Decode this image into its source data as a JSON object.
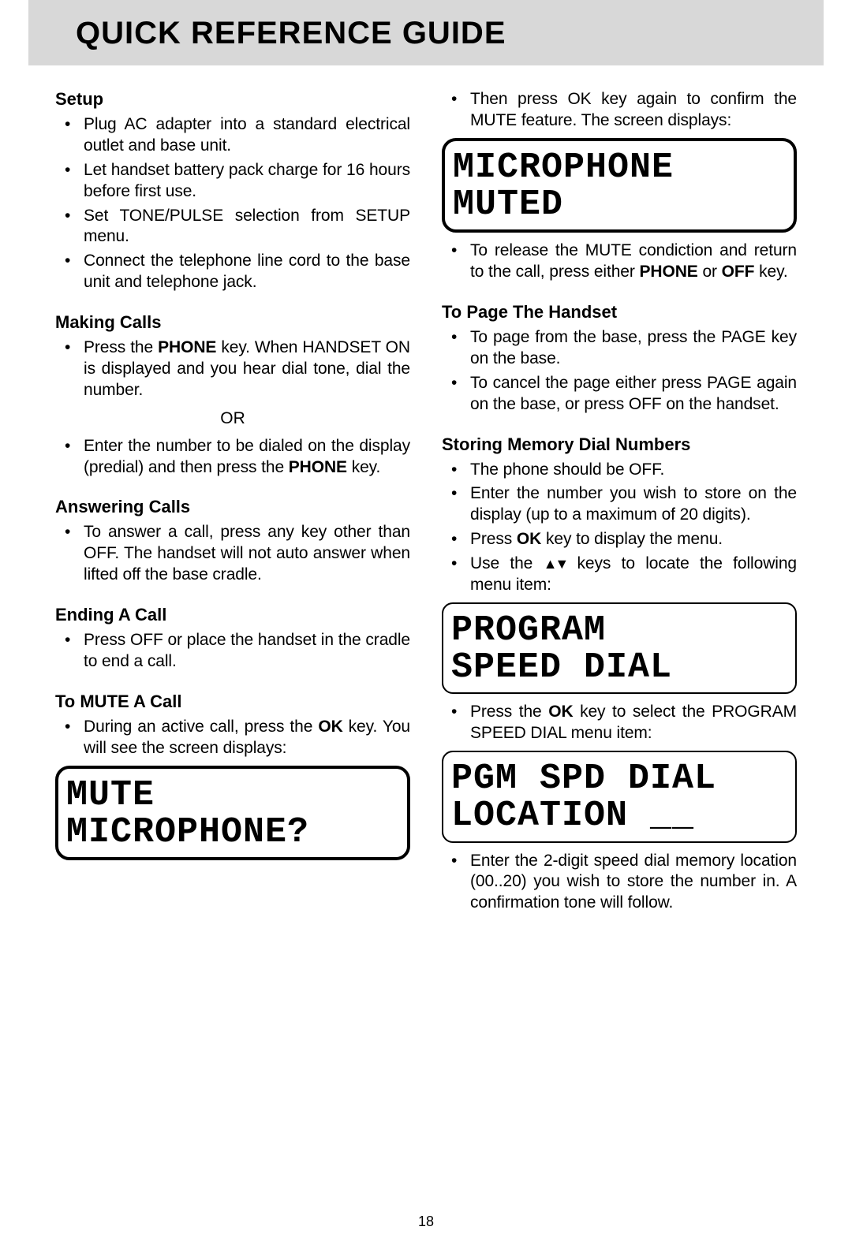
{
  "title": "QUICK REFERENCE GUIDE",
  "pageNumber": "18",
  "left": {
    "setup": {
      "head": "Setup",
      "items": [
        "Plug AC adapter into a standard electrical outlet and base unit.",
        "Let handset battery pack charge for 16 hours before first use.",
        "Set TONE/PULSE selection from SETUP menu.",
        "Connect the telephone line cord to the base unit and telephone jack."
      ]
    },
    "making": {
      "head": "Making Calls",
      "item1_a": "Press the ",
      "item1_b": "PHONE",
      "item1_c": " key.  When HANDSET ON is displayed and you hear dial tone, dial the number.",
      "or": "OR",
      "item2_a": "Enter the number to be dialed on the display (predial) and then press the ",
      "item2_b": "PHONE",
      "item2_c": " key."
    },
    "answering": {
      "head": "Answering Calls",
      "item1": "To answer a call, press any key other than OFF.  The handset will not auto answer when lifted off the base cradle."
    },
    "ending": {
      "head": "Ending A Call",
      "item1": "Press OFF or place the handset in the cradle to end a call."
    },
    "mute": {
      "head": "To MUTE A Call",
      "item1_a": "During an active call, press the ",
      "item1_b": "OK",
      "item1_c": " key. You will see the screen displays:",
      "lcd": "MUTE\nMICROPHONE?"
    }
  },
  "right": {
    "cont": {
      "item1": "Then press OK key again to confirm the MUTE feature. The screen displays:",
      "lcd": "MICROPHONE\nMUTED",
      "item2_a": "To release the MUTE condiction and return to the call, press either ",
      "item2_b": "PHONE",
      "item2_c": " or ",
      "item2_d": "OFF",
      "item2_e": " key."
    },
    "page": {
      "head": "To Page The Handset",
      "item1": "To page from the base, press the PAGE key on the base.",
      "item2": "To cancel the page either press PAGE again on the base, or press OFF on the handset."
    },
    "storing": {
      "head": "Storing Memory Dial Numbers",
      "item1": "The phone should be OFF.",
      "item2": "Enter the number you wish to store on the display (up to a maximum of 20 digits).",
      "item3_a": "Press ",
      "item3_b": "OK",
      "item3_c": " key to display the menu.",
      "item4_a": "Use the ",
      "item4_b": " keys to locate the following menu item:",
      "lcd1": "PROGRAM\nSPEED DIAL",
      "item5_a": "Press the ",
      "item5_b": "OK",
      "item5_c": " key to select the PROGRAM SPEED DIAL menu item:",
      "lcd2": "PGM SPD DIAL\nLOCATION __",
      "item6": "Enter the 2-digit speed dial memory location (00..20) you wish to store the number in.  A confirmation tone will follow."
    }
  }
}
